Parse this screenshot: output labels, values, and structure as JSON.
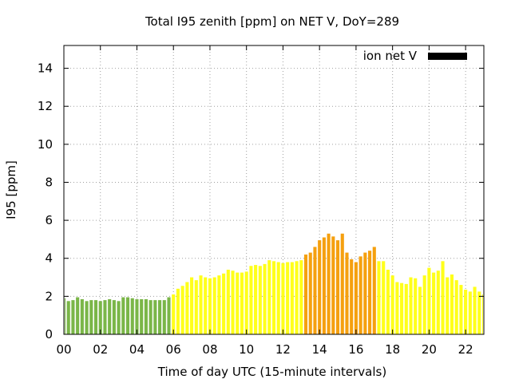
{
  "chart_data": {
    "type": "bar",
    "title": "Total I95 zenith [ppm] on NET V, DoY=289",
    "xlabel": "Time of day UTC (15-minute intervals)",
    "ylabel": "I95 [ppm]",
    "xlim": [
      0,
      23
    ],
    "ylim": [
      0,
      15.2
    ],
    "x_ticks": [
      0,
      2,
      4,
      6,
      8,
      10,
      12,
      14,
      16,
      18,
      20,
      22
    ],
    "x_tick_labels": [
      "00",
      "02",
      "04",
      "06",
      "08",
      "10",
      "12",
      "14",
      "16",
      "18",
      "20",
      "22"
    ],
    "y_ticks": [
      0,
      2,
      4,
      6,
      8,
      10,
      12,
      14
    ],
    "y_tick_labels": [
      "0",
      "2",
      "4",
      "6",
      "8",
      "10",
      "12",
      "14"
    ],
    "grid": true,
    "legend_position": "top-right",
    "series": [
      {
        "name": "ion net V",
        "legend_color": "#000000",
        "interval_hours": 0.25,
        "values": [
          1.9,
          1.75,
          1.8,
          1.95,
          1.85,
          1.75,
          1.8,
          1.8,
          1.75,
          1.8,
          1.85,
          1.8,
          1.75,
          1.95,
          1.95,
          1.9,
          1.85,
          1.85,
          1.85,
          1.8,
          1.8,
          1.8,
          1.8,
          1.95,
          2.1,
          2.4,
          2.55,
          2.75,
          3.0,
          2.85,
          3.1,
          3.0,
          2.95,
          3.0,
          3.1,
          3.2,
          3.4,
          3.35,
          3.25,
          3.25,
          3.3,
          3.6,
          3.65,
          3.6,
          3.7,
          3.9,
          3.85,
          3.8,
          3.75,
          3.8,
          3.8,
          3.85,
          3.9,
          4.2,
          4.3,
          4.6,
          4.95,
          5.1,
          5.3,
          5.15,
          4.95,
          5.3,
          4.3,
          3.95,
          3.8,
          4.1,
          4.3,
          4.4,
          4.6,
          3.85,
          3.85,
          3.4,
          3.1,
          2.75,
          2.7,
          2.65,
          3.0,
          2.95,
          2.5,
          3.1,
          3.5,
          3.25,
          3.35,
          3.85,
          3.0,
          3.15,
          2.85,
          2.6,
          2.35,
          2.25,
          2.5,
          2.25,
          2.1
        ],
        "bar_colors": [
          "#7ab648",
          "#7ab648",
          "#7ab648",
          "#7ab648",
          "#7ab648",
          "#7ab648",
          "#7ab648",
          "#7ab648",
          "#7ab648",
          "#7ab648",
          "#7ab648",
          "#7ab648",
          "#7ab648",
          "#7ab648",
          "#7ab648",
          "#7ab648",
          "#7ab648",
          "#7ab648",
          "#7ab648",
          "#7ab648",
          "#7ab648",
          "#7ab648",
          "#7ab648",
          "#7ab648",
          "#ffff1a",
          "#ffff1a",
          "#ffff1a",
          "#ffff1a",
          "#ffff1a",
          "#ffff1a",
          "#ffff1a",
          "#ffff1a",
          "#ffff1a",
          "#ffff1a",
          "#ffff1a",
          "#ffff1a",
          "#ffff1a",
          "#ffff1a",
          "#ffff1a",
          "#ffff1a",
          "#ffff1a",
          "#ffff1a",
          "#ffff1a",
          "#ffff1a",
          "#ffff1a",
          "#ffff1a",
          "#ffff1a",
          "#ffff1a",
          "#ffff1a",
          "#ffff1a",
          "#ffff1a",
          "#ffff1a",
          "#ffff1a",
          "#f5a00f",
          "#f5a00f",
          "#f5a00f",
          "#f5a00f",
          "#f5a00f",
          "#f5a00f",
          "#f5a00f",
          "#f5a00f",
          "#f5a00f",
          "#f5a00f",
          "#f5a00f",
          "#f5a00f",
          "#f5a00f",
          "#f5a00f",
          "#f5a00f",
          "#f5a00f",
          "#ffff1a",
          "#ffff1a",
          "#ffff1a",
          "#ffff1a",
          "#ffff1a",
          "#ffff1a",
          "#ffff1a",
          "#ffff1a",
          "#ffff1a",
          "#ffff1a",
          "#ffff1a",
          "#ffff1a",
          "#ffff1a",
          "#ffff1a",
          "#ffff1a",
          "#ffff1a",
          "#ffff1a",
          "#ffff1a",
          "#ffff1a",
          "#ffff1a",
          "#ffff1a",
          "#ffff1a",
          "#ffff1a",
          "#ffff1a"
        ]
      }
    ]
  }
}
